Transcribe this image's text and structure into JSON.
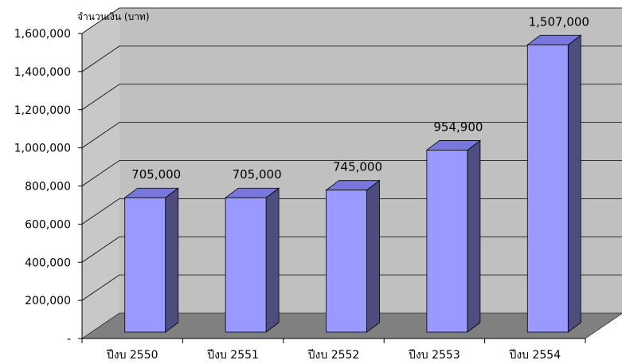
{
  "chart_data": {
    "type": "bar",
    "style": "3d-column",
    "title": "",
    "xlabel": "",
    "ylabel": "จำนวนเงิน (บาท)",
    "categories": [
      "ปีงบ 2550",
      "ปีงบ 2551",
      "ปีงบ 2552",
      "ปีงบ 2553",
      "ปีงบ 2554"
    ],
    "values": [
      705000,
      705000,
      745000,
      954900,
      1507000
    ],
    "data_labels": [
      "705,000",
      "705,000",
      "745,000",
      "954,900",
      "1,507,000"
    ],
    "yticks": [
      0,
      200000,
      400000,
      600000,
      800000,
      1000000,
      1200000,
      1400000,
      1600000
    ],
    "ytick_labels": [
      "-",
      "200,000",
      "400,000",
      "600,000",
      "800,000",
      "1,000,000",
      "1,200,000",
      "1,400,000",
      "1,600,000"
    ],
    "ylim": [
      0,
      1600000
    ],
    "grid": true,
    "legend": "none",
    "colors": {
      "bar_front": "#9999FF",
      "bar_top": "#7777DD",
      "bar_side": "#4D4D80",
      "back_wall": "#C0C0C0",
      "side_wall": "#C8C8C8",
      "floor": "#808080",
      "gridline": "#000000"
    }
  }
}
